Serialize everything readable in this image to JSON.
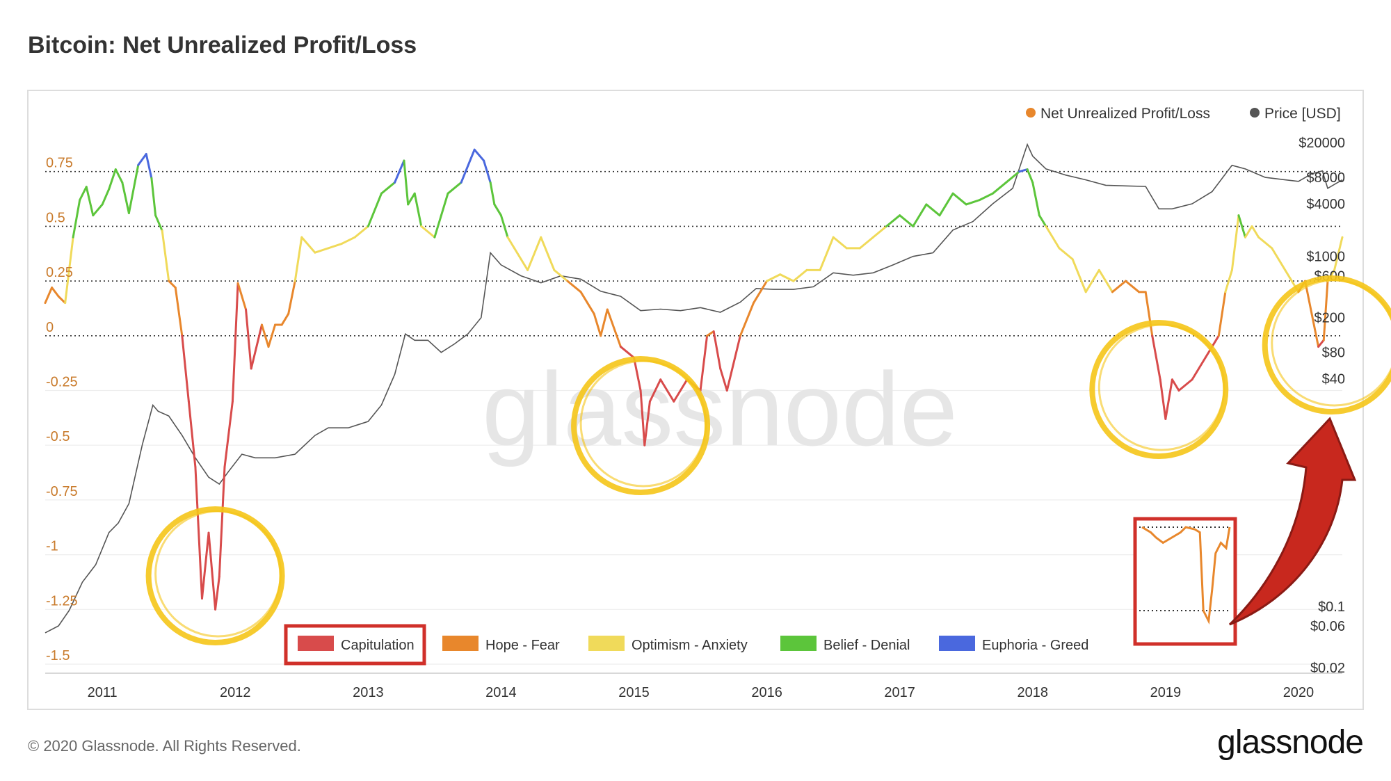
{
  "title": "Bitcoin: Net Unrealized Profit/Loss",
  "copyright": "© 2020 Glassnode. All Rights Reserved.",
  "brand": "glassnode",
  "watermark": "glassnode",
  "colors": {
    "capitulation": "#d84b4b",
    "hope_fear": "#e8872c",
    "optimism_anxiety": "#f0da5a",
    "belief_denial": "#5cc53b",
    "euphoria_greed": "#4a68de",
    "price": "#555555",
    "highlight": "#f5c518",
    "box": "#d0302a",
    "arrow": "#c8281e",
    "left_axis": "#c97b2c"
  },
  "chart_data": {
    "type": "line",
    "legend_top": [
      "Net Unrealized Profit/Loss",
      "Price [USD]"
    ],
    "legend_bottom": [
      "Capitulation",
      "Hope - Fear",
      "Optimism - Anxiety",
      "Belief - Denial",
      "Euphoria - Greed"
    ],
    "x_ticks": [
      "2011",
      "2012",
      "2013",
      "2014",
      "2015",
      "2016",
      "2017",
      "2018",
      "2019",
      "2020"
    ],
    "xlim": [
      2010.57,
      2020.33
    ],
    "y_left_ticks": [
      "0.75",
      "0.5",
      "0.25",
      "0",
      "-0.25",
      "-0.5",
      "-0.75",
      "-1",
      "-1.25",
      "-1.5"
    ],
    "y_left_values": [
      0.75,
      0.5,
      0.25,
      0,
      -0.25,
      -0.5,
      -0.75,
      -1,
      -1.25,
      -1.5
    ],
    "ylim_left": [
      -1.5,
      1.0
    ],
    "y_right_ticks": [
      "$20000",
      "$8000",
      "$4000",
      "$1000",
      "$600",
      "$200",
      "$80",
      "$40",
      "$0.1",
      "$0.06",
      "$0.02"
    ],
    "y_right_values": [
      20000,
      8000,
      4000,
      1000,
      600,
      200,
      80,
      40,
      0.1,
      0.06,
      0.02
    ],
    "y_right_scale": "log",
    "ylim_right": [
      0.02,
      20000
    ],
    "nupl_series": {
      "name": "Net Unrealized Profit/Loss",
      "x": [
        2010.57,
        2010.62,
        2010.67,
        2010.72,
        2010.78,
        2010.83,
        2010.88,
        2010.93,
        2011.0,
        2011.05,
        2011.1,
        2011.15,
        2011.2,
        2011.27,
        2011.33,
        2011.37,
        2011.4,
        2011.45,
        2011.5,
        2011.55,
        2011.6,
        2011.65,
        2011.7,
        2011.75,
        2011.8,
        2011.85,
        2011.88,
        2011.92,
        2011.98,
        2012.02,
        2012.08,
        2012.12,
        2012.2,
        2012.25,
        2012.3,
        2012.35,
        2012.4,
        2012.45,
        2012.5,
        2012.6,
        2012.7,
        2012.8,
        2012.9,
        2013.0,
        2013.1,
        2013.2,
        2013.27,
        2013.3,
        2013.35,
        2013.4,
        2013.5,
        2013.55,
        2013.6,
        2013.7,
        2013.8,
        2013.87,
        2013.92,
        2013.95,
        2014.0,
        2014.05,
        2014.1,
        2014.15,
        2014.2,
        2014.3,
        2014.4,
        2014.5,
        2014.6,
        2014.7,
        2014.75,
        2014.8,
        2014.9,
        2015.0,
        2015.05,
        2015.08,
        2015.12,
        2015.2,
        2015.3,
        2015.4,
        2015.5,
        2015.55,
        2015.6,
        2015.65,
        2015.7,
        2015.8,
        2015.9,
        2016.0,
        2016.1,
        2016.2,
        2016.3,
        2016.4,
        2016.5,
        2016.6,
        2016.7,
        2016.8,
        2016.9,
        2017.0,
        2017.1,
        2017.2,
        2017.3,
        2017.4,
        2017.5,
        2017.6,
        2017.7,
        2017.8,
        2017.9,
        2017.96,
        2018.0,
        2018.05,
        2018.1,
        2018.2,
        2018.3,
        2018.4,
        2018.5,
        2018.6,
        2018.7,
        2018.8,
        2018.85,
        2018.9,
        2018.96,
        2019.0,
        2019.05,
        2019.1,
        2019.2,
        2019.3,
        2019.4,
        2019.45,
        2019.5,
        2019.55,
        2019.6,
        2019.65,
        2019.7,
        2019.8,
        2019.9,
        2020.0,
        2020.05,
        2020.1,
        2020.15,
        2020.19,
        2020.22,
        2020.27,
        2020.33
      ],
      "y": [
        0.15,
        0.22,
        0.18,
        0.15,
        0.45,
        0.62,
        0.68,
        0.55,
        0.6,
        0.67,
        0.76,
        0.7,
        0.56,
        0.78,
        0.83,
        0.72,
        0.55,
        0.48,
        0.25,
        0.22,
        0.0,
        -0.3,
        -0.6,
        -1.2,
        -0.9,
        -1.25,
        -1.1,
        -0.6,
        -0.3,
        0.24,
        0.12,
        -0.15,
        0.05,
        -0.05,
        0.05,
        0.05,
        0.1,
        0.25,
        0.45,
        0.38,
        0.4,
        0.42,
        0.45,
        0.5,
        0.65,
        0.7,
        0.8,
        0.6,
        0.65,
        0.5,
        0.45,
        0.55,
        0.65,
        0.7,
        0.85,
        0.8,
        0.7,
        0.6,
        0.55,
        0.45,
        0.4,
        0.35,
        0.3,
        0.45,
        0.3,
        0.25,
        0.2,
        0.1,
        0.0,
        0.12,
        -0.05,
        -0.1,
        -0.25,
        -0.5,
        -0.3,
        -0.2,
        -0.3,
        -0.2,
        -0.25,
        0.0,
        0.02,
        -0.15,
        -0.25,
        0.0,
        0.15,
        0.25,
        0.28,
        0.25,
        0.3,
        0.3,
        0.45,
        0.4,
        0.4,
        0.45,
        0.5,
        0.55,
        0.5,
        0.6,
        0.55,
        0.65,
        0.6,
        0.62,
        0.65,
        0.7,
        0.75,
        0.76,
        0.7,
        0.55,
        0.5,
        0.4,
        0.35,
        0.2,
        0.3,
        0.2,
        0.25,
        0.2,
        0.2,
        0.0,
        -0.2,
        -0.38,
        -0.2,
        -0.25,
        -0.2,
        -0.1,
        0.0,
        0.2,
        0.3,
        0.55,
        0.45,
        0.5,
        0.45,
        0.4,
        0.3,
        0.2,
        0.25,
        0.1,
        -0.05,
        -0.02,
        0.25,
        0.3,
        0.45
      ]
    },
    "price_series": {
      "name": "Price [USD]",
      "x": [
        2010.57,
        2010.67,
        2010.75,
        2010.85,
        2010.95,
        2011.05,
        2011.12,
        2011.2,
        2011.3,
        2011.38,
        2011.42,
        2011.5,
        2011.6,
        2011.7,
        2011.8,
        2011.88,
        2011.95,
        2012.05,
        2012.15,
        2012.3,
        2012.45,
        2012.6,
        2012.7,
        2012.85,
        2013.0,
        2013.1,
        2013.2,
        2013.28,
        2013.35,
        2013.45,
        2013.55,
        2013.65,
        2013.75,
        2013.85,
        2013.92,
        2014.0,
        2014.15,
        2014.3,
        2014.45,
        2014.6,
        2014.75,
        2014.9,
        2015.05,
        2015.2,
        2015.35,
        2015.5,
        2015.65,
        2015.8,
        2015.92,
        2016.05,
        2016.2,
        2016.35,
        2016.5,
        2016.65,
        2016.8,
        2016.95,
        2017.1,
        2017.25,
        2017.4,
        2017.55,
        2017.7,
        2017.85,
        2017.96,
        2018.0,
        2018.1,
        2018.25,
        2018.4,
        2018.55,
        2018.7,
        2018.85,
        2018.95,
        2019.05,
        2019.2,
        2019.35,
        2019.5,
        2019.6,
        2019.75,
        2019.9,
        2020.0,
        2020.1,
        2020.18,
        2020.22,
        2020.33
      ],
      "y": [
        0.05,
        0.06,
        0.09,
        0.19,
        0.3,
        0.7,
        0.9,
        1.5,
        7,
        20,
        17,
        15,
        9,
        5,
        3,
        2.5,
        3.5,
        5.5,
        5,
        5,
        5.5,
        9,
        11,
        11,
        13,
        20,
        45,
        130,
        110,
        110,
        80,
        100,
        130,
        200,
        1100,
        800,
        600,
        500,
        600,
        550,
        400,
        350,
        240,
        250,
        240,
        260,
        230,
        300,
        430,
        420,
        420,
        450,
        650,
        610,
        650,
        800,
        1000,
        1100,
        2000,
        2500,
        4000,
        6000,
        19000,
        14000,
        10000,
        8500,
        7500,
        6500,
        6400,
        6300,
        3500,
        3500,
        4000,
        5500,
        11000,
        10000,
        8000,
        7500,
        7200,
        8800,
        9500,
        6000,
        7500
      ]
    },
    "highlight_circles_x": [
      2011.85,
      2015.05,
      2018.95,
      2020.25
    ],
    "inset": {
      "x": [
        2019.0,
        2019.05,
        2019.08,
        2019.12,
        2019.17,
        2019.22,
        2019.25,
        2019.3,
        2019.33,
        2019.35,
        2019.38,
        2019.4,
        2019.42,
        2019.45,
        2019.48,
        2019.5
      ],
      "y": [
        1.0,
        0.95,
        0.9,
        0.85,
        0.9,
        0.95,
        1.0,
        0.98,
        0.95,
        0.2,
        0.1,
        0.4,
        0.75,
        0.85,
        0.8,
        1.0
      ]
    }
  }
}
